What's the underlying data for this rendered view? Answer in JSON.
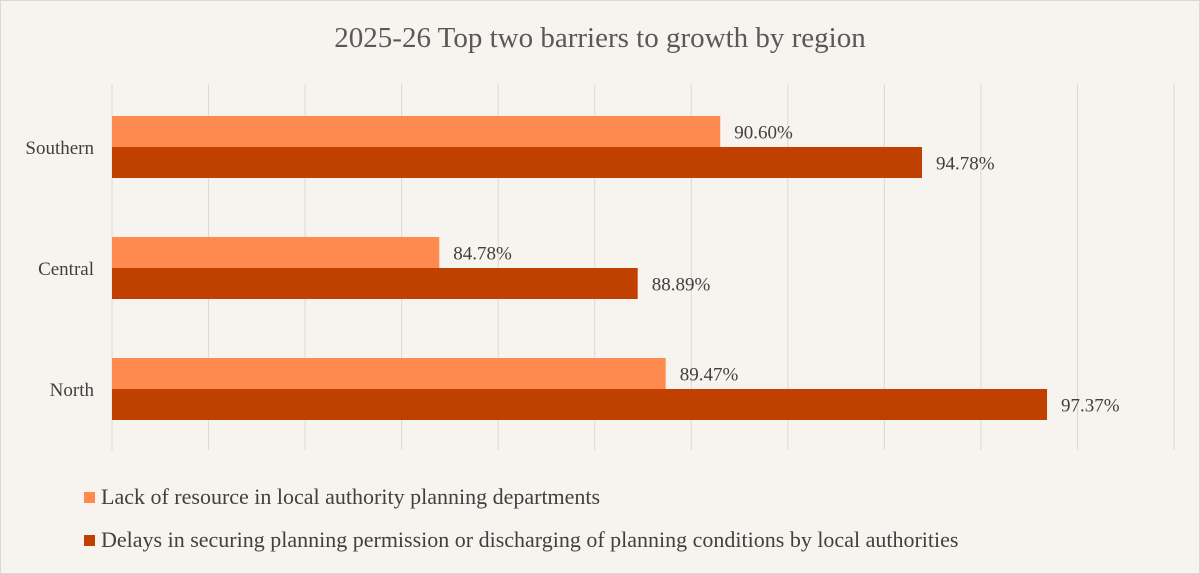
{
  "chart_data": {
    "type": "bar",
    "orientation": "horizontal",
    "title": "2025-26 Top two barriers to growth by region",
    "categories": [
      "Southern",
      "Central",
      "North"
    ],
    "series": [
      {
        "name": "Lack of resource in local authority planning departments",
        "color": "#ff8a4f",
        "values": [
          90.6,
          84.78,
          89.47
        ],
        "labels": [
          "90.60%",
          "84.78%",
          "89.47%"
        ]
      },
      {
        "name": "Delays in securing planning permission or discharging of planning conditions by local authorities",
        "color": "#c04000",
        "values": [
          94.78,
          88.89,
          97.37
        ],
        "labels": [
          "94.78%",
          "88.89%",
          "97.37%"
        ]
      }
    ],
    "xlim": [
      78,
      100
    ],
    "grid_step": 2,
    "grid": true,
    "x_tick_labels_shown": false,
    "legend_position": "bottom"
  }
}
